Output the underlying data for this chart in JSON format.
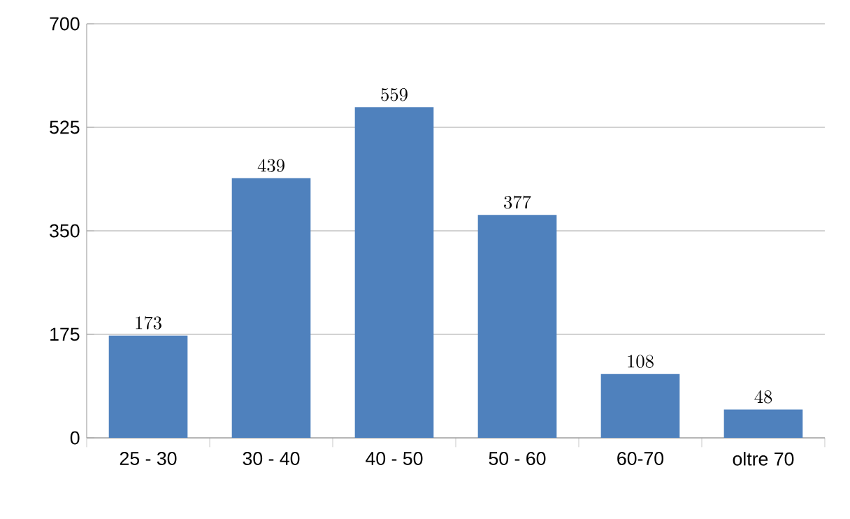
{
  "chart_data": {
    "type": "bar",
    "categories": [
      "25 - 30",
      "30 - 40",
      "40 - 50",
      "50 - 60",
      "60-70",
      "oltre 70"
    ],
    "values": [
      173,
      439,
      559,
      377,
      108,
      48
    ],
    "color": "#4f81bd",
    "ylim": [
      0,
      700
    ],
    "yticks": [
      0,
      175,
      350,
      525,
      700
    ],
    "grid": "y",
    "data_labels": true
  }
}
